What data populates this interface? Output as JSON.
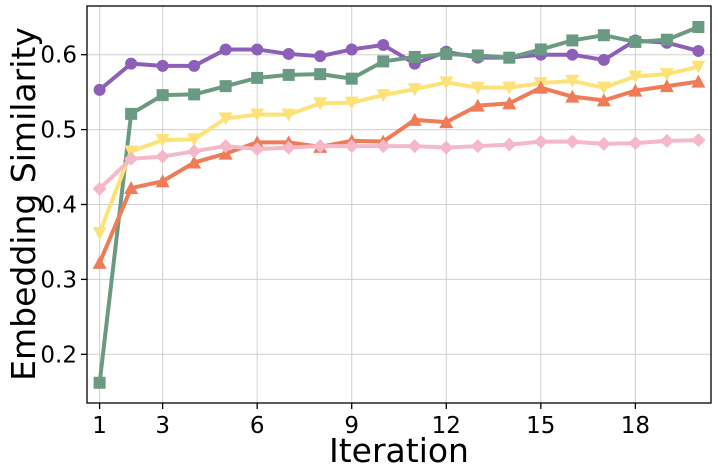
{
  "chart_data": {
    "type": "line",
    "title": "",
    "xlabel": "Iteration",
    "ylabel": "Embedding Similarity",
    "xlim": [
      0.6,
      20.4
    ],
    "ylim": [
      0.135,
      0.665
    ],
    "x_ticks": [
      1,
      3,
      6,
      9,
      12,
      15,
      18
    ],
    "y_ticks": [
      0.2,
      0.3,
      0.4,
      0.5,
      0.6
    ],
    "y_tick_labels": [
      "0.2",
      "0.3",
      "0.4",
      "0.5",
      "0.6"
    ],
    "grid": true,
    "x": [
      1,
      2,
      3,
      4,
      5,
      6,
      7,
      8,
      9,
      10,
      11,
      12,
      13,
      14,
      15,
      16,
      17,
      18,
      19,
      20
    ],
    "series": [
      {
        "name": "purple-circle",
        "color": "#8e5fb8",
        "marker": "circle",
        "values": [
          0.553,
          0.588,
          0.585,
          0.585,
          0.607,
          0.607,
          0.601,
          0.598,
          0.607,
          0.613,
          0.588,
          0.604,
          0.596,
          0.596,
          0.6,
          0.6,
          0.593,
          0.619,
          0.616,
          0.605
        ]
      },
      {
        "name": "green-square",
        "color": "#6b9a82",
        "marker": "square",
        "values": [
          0.162,
          0.521,
          0.546,
          0.547,
          0.558,
          0.569,
          0.573,
          0.574,
          0.568,
          0.591,
          0.597,
          0.601,
          0.599,
          0.596,
          0.607,
          0.619,
          0.626,
          0.617,
          0.62,
          0.637
        ]
      },
      {
        "name": "yellow-triangle-down",
        "color": "#fde377",
        "marker": "triangle-down",
        "values": [
          0.362,
          0.471,
          0.486,
          0.487,
          0.515,
          0.52,
          0.52,
          0.535,
          0.536,
          0.546,
          0.554,
          0.563,
          0.556,
          0.556,
          0.562,
          0.565,
          0.556,
          0.571,
          0.574,
          0.584
        ]
      },
      {
        "name": "orange-triangle-up",
        "color": "#f07b57",
        "marker": "triangle-up",
        "values": [
          0.322,
          0.422,
          0.431,
          0.456,
          0.468,
          0.483,
          0.483,
          0.477,
          0.485,
          0.484,
          0.513,
          0.51,
          0.532,
          0.535,
          0.556,
          0.544,
          0.539,
          0.552,
          0.558,
          0.564
        ]
      },
      {
        "name": "pink-diamond",
        "color": "#f5b8c8",
        "marker": "diamond",
        "values": [
          0.421,
          0.461,
          0.464,
          0.471,
          0.478,
          0.474,
          0.476,
          0.478,
          0.478,
          0.478,
          0.478,
          0.476,
          0.478,
          0.48,
          0.484,
          0.484,
          0.481,
          0.482,
          0.485,
          0.486
        ]
      }
    ]
  }
}
